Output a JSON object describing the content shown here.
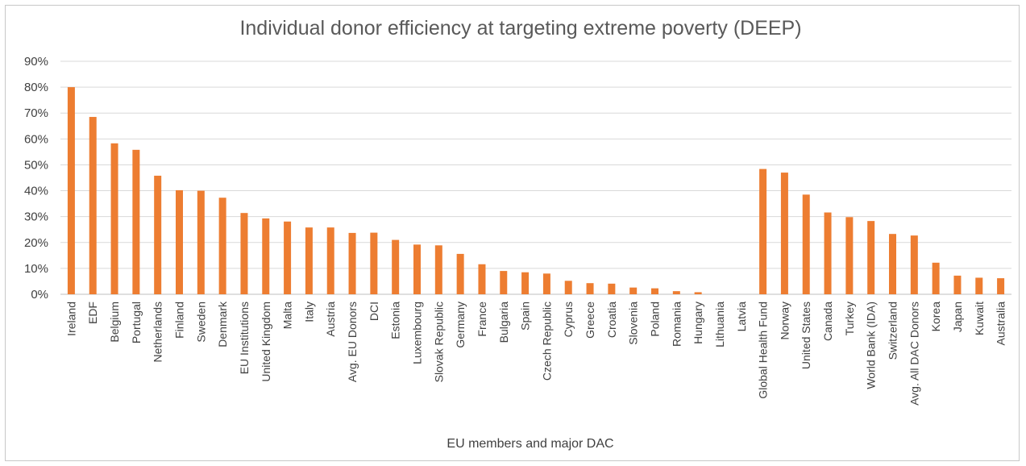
{
  "chart_data": {
    "type": "bar",
    "title": "Individual donor efficiency at targeting extreme poverty (DEEP)",
    "xlabel": "EU members and major DAC",
    "ylabel": "",
    "ylim": [
      0,
      90
    ],
    "yticks": [
      "0%",
      "10%",
      "20%",
      "30%",
      "40%",
      "50%",
      "60%",
      "70%",
      "80%",
      "90%"
    ],
    "grid": true,
    "legend": "none",
    "bar_color": "#ED7D31",
    "categories": [
      "Ireland",
      "EDF",
      "Belgium",
      "Portugal",
      "Netherlands",
      "Finland",
      "Sweden",
      "Denmark",
      "EU Institutions",
      "United Kingdom",
      "Malta",
      "Italy",
      "Austria",
      "Avg. EU Donors",
      "DCI",
      "Estonia",
      "Luxembourg",
      "Slovak Republic",
      "Germany",
      "France",
      "Bulgaria",
      "Spain",
      "Czech Republic",
      "Cyprus",
      "Greece",
      "Croatia",
      "Slovenia",
      "Poland",
      "Romania",
      "Hungary",
      "Lithuania",
      "Latvia",
      "Global Health Fund",
      "Norway",
      "United States",
      "Canada",
      "Turkey",
      "World Bank (IDA)",
      "Switzerland",
      "Avg. All DAC Donors",
      "Korea",
      "Japan",
      "Kuwait",
      "Australia"
    ],
    "values": [
      80,
      68.5,
      58.3,
      55.8,
      45.8,
      40.2,
      40,
      37.3,
      31.4,
      29.3,
      28.1,
      25.8,
      25.8,
      23.7,
      23.8,
      21,
      19.2,
      18.9,
      15.6,
      11.6,
      9,
      8.5,
      8,
      5.2,
      4.3,
      4.1,
      2.6,
      2.3,
      1.2,
      0.8,
      0,
      0,
      48.4,
      47,
      38.5,
      31.6,
      29.8,
      28.3,
      23.3,
      22.7,
      12.2,
      7.2,
      6.4,
      6.2
    ]
  }
}
